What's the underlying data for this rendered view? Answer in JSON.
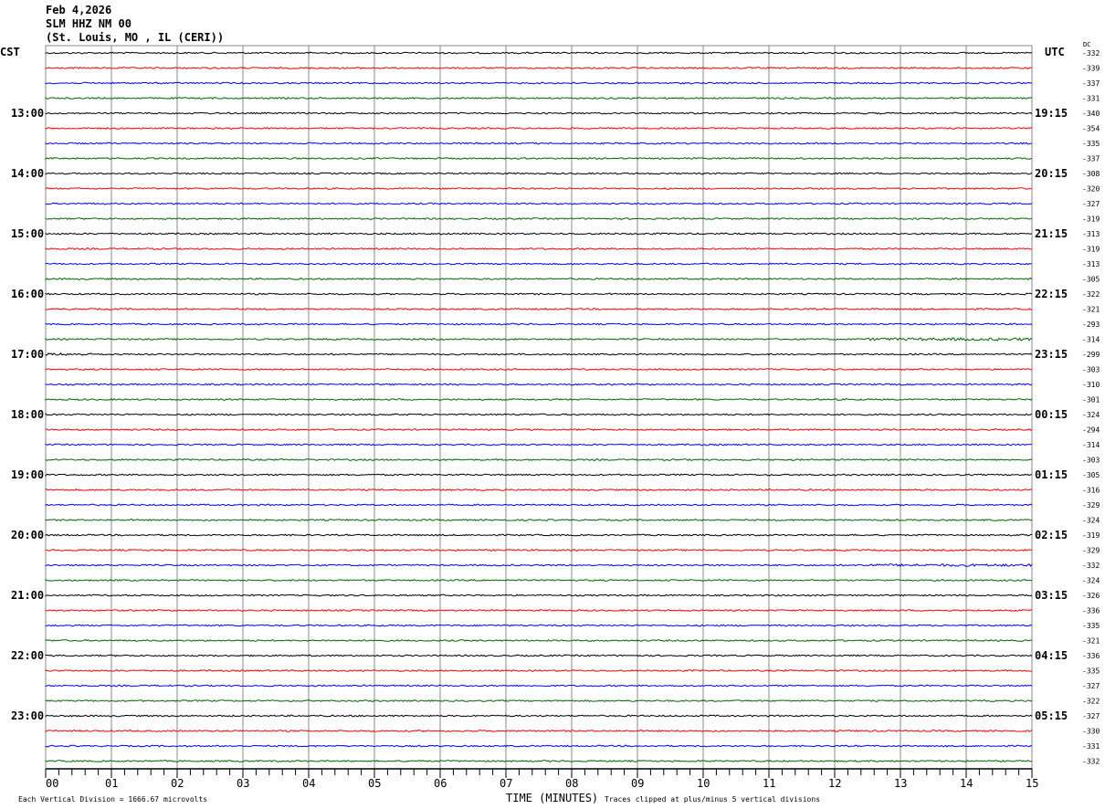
{
  "header": {
    "date": "Feb 4,2026",
    "station": "SLM HHZ NM 00",
    "location": "(St. Louis, MO , IL (CERI))"
  },
  "chart_data": {
    "type": "line",
    "left_timezone": "CST",
    "right_timezone": "UTC",
    "dc_label": "DC",
    "xlabel": "TIME (MINUTES)",
    "xlim": [
      0,
      15
    ],
    "x_ticks": [
      "00",
      "01",
      "02",
      "03",
      "04",
      "05",
      "06",
      "07",
      "08",
      "09",
      "10",
      "11",
      "12",
      "13",
      "14",
      "15"
    ],
    "grid": true,
    "trace_colors": [
      "#000000",
      "#ff0000",
      "#0000ff",
      "#006400"
    ],
    "left_hour_labels": [
      "13:00",
      "14:00",
      "15:00",
      "16:00",
      "17:00",
      "18:00",
      "19:00",
      "20:00",
      "21:00",
      "22:00",
      "23:00"
    ],
    "right_hour_labels": [
      "19:15",
      "20:15",
      "21:15",
      "22:15",
      "23:15",
      "00:15",
      "01:15",
      "02:15",
      "03:15",
      "04:15",
      "05:15"
    ],
    "dc_offsets": [
      -332,
      -339,
      -337,
      -331,
      -340,
      -354,
      -335,
      -337,
      -308,
      -320,
      -327,
      -319,
      -313,
      -319,
      -313,
      -305,
      -322,
      -321,
      -293,
      -314,
      -299,
      -303,
      -310,
      -301,
      -324,
      -294,
      -314,
      -303,
      -305,
      -316,
      -329,
      -324,
      -319,
      -329,
      -332,
      -324,
      -326,
      -336,
      -335,
      -321,
      -336,
      -335,
      -327,
      -322,
      -327,
      -330,
      -331,
      -332
    ],
    "scale_note": "Each Vertical Division = 1666.67 microvolts",
    "clip_note": "Traces clipped at plus/minus 5 vertical divisions"
  }
}
